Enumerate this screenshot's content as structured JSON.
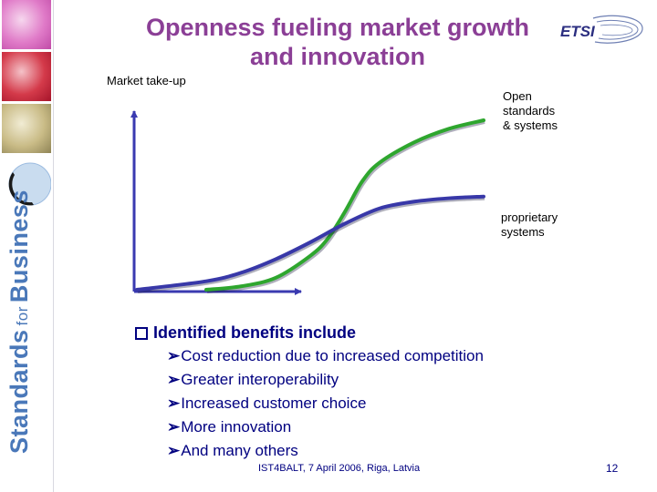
{
  "title": {
    "line1": "Openness fueling market growth",
    "line2": "and innovation"
  },
  "logo_text": "ETSI",
  "brand": {
    "word1": "Standards",
    "word2": "for",
    "word3": "Business"
  },
  "chart_data": {
    "type": "line",
    "title": "",
    "ylabel": "Market take-up",
    "xlabel": "",
    "xlim": [
      0,
      10
    ],
    "ylim": [
      0,
      10
    ],
    "series": [
      {
        "name": "Open standards & systems",
        "color": "#2ea62e",
        "x": [
          2,
          3,
          4,
          5,
          5.5,
          6,
          6.5,
          7,
          8,
          9,
          10
        ],
        "y": [
          0,
          0.2,
          0.7,
          2,
          3,
          4.6,
          6.4,
          7.5,
          8.7,
          9.5,
          10
        ]
      },
      {
        "name": "proprietary systems",
        "color": "#3838a8",
        "x": [
          0,
          2,
          3,
          4,
          5,
          6,
          7,
          8,
          9,
          10
        ],
        "y": [
          0,
          0.5,
          1,
          1.8,
          2.8,
          3.9,
          4.8,
          5.2,
          5.4,
          5.5
        ]
      }
    ],
    "labels": {
      "open": "Open\nstandards\n& systems",
      "proprietary": "proprietary\nsystems"
    }
  },
  "bullets": {
    "heading": "Identified benefits include",
    "items": [
      "Cost reduction due to increased competition",
      "Greater interoperability",
      "Increased customer choice",
      "More innovation",
      "And many others"
    ]
  },
  "footer": "IST4BALT, 7 April 2006, Riga, Latvia",
  "page_number": "12"
}
